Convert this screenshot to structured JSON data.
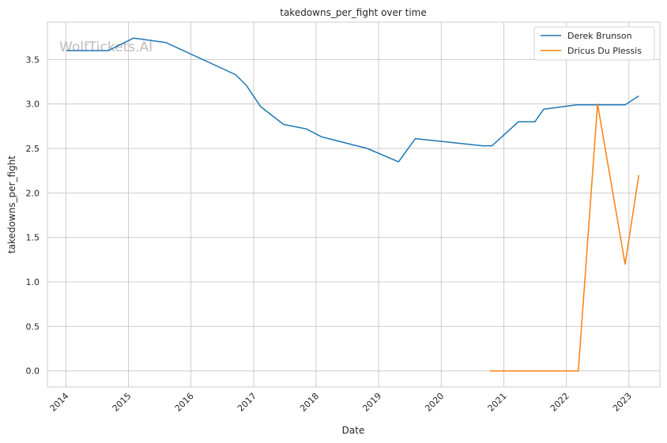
{
  "chart_data": {
    "type": "line",
    "title": "takedowns_per_fight over time",
    "xlabel": "Date",
    "ylabel": "takedowns_per_fight",
    "watermark": "WolfTickets.AI",
    "xlim": [
      "2013-09-15",
      "2023-07-01"
    ],
    "ylim": [
      -0.18,
      3.92
    ],
    "x_ticks": [
      "2014",
      "2015",
      "2016",
      "2017",
      "2018",
      "2019",
      "2020",
      "2021",
      "2022",
      "2023"
    ],
    "y_ticks": [
      0.0,
      0.5,
      1.0,
      1.5,
      2.0,
      2.5,
      3.0,
      3.5
    ],
    "y_tick_labels": [
      "0.0",
      "0.5",
      "1.0",
      "1.5",
      "2.0",
      "2.5",
      "3.0",
      "3.5"
    ],
    "grid": true,
    "legend_position": "top-right",
    "series": [
      {
        "name": "Derek Brunson",
        "color": "#1f77b4",
        "x": [
          "2014-01-04",
          "2014-09-05",
          "2015-01-31",
          "2015-08-08",
          "2016-09-17",
          "2016-11-19",
          "2017-02-11",
          "2017-06-25",
          "2017-11-04",
          "2018-02-03",
          "2018-10-27",
          "2019-04-27",
          "2019-08-03",
          "2020-01-01",
          "2020-08-29",
          "2020-10-24",
          "2021-03-27",
          "2021-07-01",
          "2021-08-21",
          "2022-03-01",
          "2022-07-30",
          "2022-12-10",
          "2023-02-28"
        ],
        "y": [
          3.6,
          3.6,
          3.74,
          3.69,
          3.33,
          3.21,
          2.97,
          2.77,
          2.72,
          2.63,
          2.5,
          2.35,
          2.61,
          2.58,
          2.53,
          2.53,
          2.8,
          2.8,
          2.94,
          2.99,
          2.99,
          2.99,
          3.09
        ]
      },
      {
        "name": "Dricus Du Plessis",
        "color": "#ff7f0e",
        "x": [
          "2020-10-11",
          "2022-03-12",
          "2022-07-02",
          "2022-12-10",
          "2023-02-28"
        ],
        "y": [
          0.0,
          0.0,
          3.0,
          1.2,
          2.2
        ]
      }
    ]
  }
}
